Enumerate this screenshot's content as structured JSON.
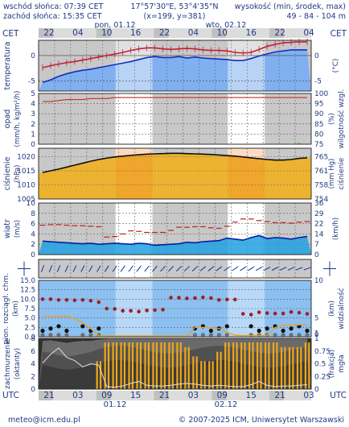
{
  "header": {
    "sunrise": "wschód słońca: 07:39 CET",
    "sunset": "zachód słońca: 15:35 CET",
    "coords": "17°57'30\"E, 53°4'35\"N",
    "grid": "(x=199, y=381)",
    "elevation_title": "wysokość (min, środek, max)",
    "elevation_values": "49 - 84 - 104 m"
  },
  "footer": {
    "email": "meteo@icm.edu.pl",
    "copyright": "© 2007-2025 ICM, Uniwersytet Warszawski"
  },
  "time_axis": {
    "top_zone": "CET",
    "bottom_zone": "UTC",
    "top_hours": [
      "22",
      "04",
      "10",
      "16",
      "22",
      "04",
      "10",
      "16",
      "22",
      "04"
    ],
    "bottom_hours": [
      "21",
      "03",
      "09",
      "15",
      "21",
      "03",
      "09",
      "15",
      "21",
      "03"
    ],
    "days": [
      "pon, 01.12",
      "wto, 02.12"
    ],
    "bottom_days": [
      "01.12",
      "02.12"
    ]
  },
  "colors": {
    "night": "#c8c8c8",
    "day": "#ffffff",
    "label": "#203a80",
    "temp_line": "#c0203a",
    "dew_line": "#1030c0",
    "pressure_fill": "#f0b020",
    "wind_fill": "#20a0e0",
    "cloud_fill": "#404040",
    "fog_bar": "#f0a818"
  },
  "chart_data": [
    {
      "type": "line",
      "title": "",
      "left_label": "temperatura",
      "right_label": "(°C)",
      "ylim": [
        -7,
        3
      ],
      "left_ticks": [
        "0",
        "-5"
      ],
      "right_ticks": [
        "0",
        "-5"
      ],
      "series": [
        {
          "name": "temperatura",
          "color": "#c0203a",
          "values": [
            -2.4,
            -2.0,
            -1.7,
            -1.4,
            -1.2,
            -0.9,
            -0.6,
            -0.3,
            0.0,
            0.3,
            0.6,
            1.0,
            1.3,
            1.5,
            1.5,
            1.3,
            1.2,
            1.3,
            1.4,
            1.3,
            1.1,
            1.0,
            1.0,
            0.9,
            0.6,
            0.5,
            0.6,
            1.2,
            1.8,
            2.2,
            2.5,
            2.6,
            2.7,
            2.7
          ]
        },
        {
          "name": "punkt rosy",
          "color": "#1030c0",
          "values": [
            -5.3,
            -4.8,
            -4.1,
            -3.6,
            -3.2,
            -2.9,
            -2.7,
            -2.4,
            -2.1,
            -1.8,
            -1.5,
            -1.2,
            -0.8,
            -0.4,
            -0.2,
            -0.4,
            -0.4,
            -0.2,
            -0.5,
            -0.3,
            -0.5,
            -0.6,
            -0.7,
            -0.8,
            -1.0,
            -1.0,
            -0.6,
            -0.1,
            0.3,
            0.7,
            0.9,
            1.1,
            1.1,
            1.1
          ]
        }
      ]
    },
    {
      "type": "line",
      "title": "",
      "left_label": "opad",
      "left_unit": "(mm/h, kg/m²/h)",
      "right_label": "wilgotność wzgl.",
      "right_unit": "(%)",
      "ylim": [
        0,
        5
      ],
      "left_ticks": [
        "5",
        "4",
        "3",
        "2",
        "1",
        "0"
      ],
      "right_ticks": [
        "100",
        "95",
        "90",
        "85",
        "80",
        "75"
      ],
      "series": [
        {
          "name": "wilgotność",
          "color": "#c03020",
          "values": [
            96,
            96,
            96.5,
            97,
            97,
            97,
            97.5,
            97.5,
            97.5,
            98,
            98,
            98,
            98,
            98,
            98,
            98,
            98,
            98,
            98,
            98,
            98,
            98,
            98,
            98,
            98,
            98,
            98,
            98,
            98,
            98,
            98,
            98,
            98,
            98
          ]
        }
      ],
      "precip_bars": [
        0,
        0,
        0,
        0.05,
        0,
        0.08,
        0,
        0,
        0,
        0,
        0,
        0,
        0,
        0,
        0,
        0,
        0,
        0,
        0,
        0,
        0,
        0,
        0,
        0,
        0,
        0,
        0,
        0,
        0,
        0,
        0,
        0.05,
        0.1,
        0
      ]
    },
    {
      "type": "area",
      "title": "",
      "left_label": "ciśnienie",
      "left_unit": "(hPa)",
      "right_label": "ciśnienie",
      "right_unit": "(mm Hg)",
      "ylim": [
        1005,
        1023
      ],
      "left_ticks": [
        "1020",
        "1015",
        "1010",
        "1005"
      ],
      "right_ticks": [
        "765",
        "761",
        "758",
        "754"
      ],
      "series": [
        {
          "name": "ciśnienie",
          "color": "#101010",
          "values": [
            1014.4,
            1015.0,
            1015.6,
            1016.3,
            1017.0,
            1017.7,
            1018.4,
            1019.0,
            1019.5,
            1019.9,
            1020.2,
            1020.5,
            1020.7,
            1020.9,
            1021.0,
            1021.1,
            1021.2,
            1021.2,
            1021.1,
            1021.0,
            1020.9,
            1020.8,
            1020.6,
            1020.4,
            1020.2,
            1019.9,
            1019.6,
            1019.3,
            1019.0,
            1018.8,
            1018.8,
            1019.0,
            1019.4,
            1019.6
          ]
        }
      ]
    },
    {
      "type": "area",
      "title": "",
      "left_label": "wiatr",
      "left_unit": "(m/s)",
      "right_label": "(km/h)",
      "ylim": [
        0,
        10
      ],
      "left_ticks": [
        "10",
        "8",
        "6",
        "4",
        "2",
        "0"
      ],
      "right_ticks": [
        "36",
        "29",
        "22",
        "14",
        "7",
        "0"
      ],
      "series": [
        {
          "name": "prędkość",
          "color": "#0020a0",
          "values": [
            2.6,
            2.5,
            2.4,
            2.3,
            2.2,
            2.1,
            2.2,
            2.0,
            2.1,
            2.2,
            2.1,
            2.0,
            2.2,
            2.1,
            1.8,
            1.9,
            2.0,
            2.1,
            2.4,
            2.3,
            2.5,
            2.6,
            2.7,
            3.2,
            3.0,
            2.8,
            3.3,
            3.7,
            3.1,
            3.3,
            3.2,
            3.0,
            3.3,
            3.5
          ]
        },
        {
          "name": "porywy",
          "color": "#c02020",
          "values": [
            5.7,
            5.8,
            5.8,
            5.7,
            5.6,
            5.6,
            5.5,
            5.4,
            3.4,
            3.5,
            4.0,
            4.6,
            4.5,
            4.3,
            4.3,
            4.3,
            4.7,
            5.3,
            5.3,
            5.4,
            5.4,
            5.2,
            5.1,
            5.5,
            6.3,
            6.9,
            6.9,
            6.6,
            6.4,
            6.2,
            6.2,
            6.1,
            6.3,
            6.4
          ]
        }
      ]
    },
    {
      "type": "scatter",
      "title": "",
      "left_label": "pion. rozciągł. chm.",
      "left_unit": "(km)",
      "right_label": "widzialność",
      "right_unit": "(km)",
      "ylim": [
        0,
        15
      ],
      "left_ticks": [
        "15.0",
        "12.5",
        "10.0",
        "7.5",
        "5.0",
        "2.5",
        "0.0"
      ],
      "right_ticks": [
        "10",
        "5",
        "1",
        "0"
      ],
      "series": [
        {
          "name": "podstawa chmur",
          "color": "#a02020",
          "values": [
            10.0,
            10.0,
            9.8,
            9.8,
            9.7,
            9.8,
            9.6,
            9.2,
            7.5,
            7.4,
            6.9,
            6.9,
            6.7,
            7.0,
            7.1,
            7.2,
            10.4,
            10.4,
            10.2,
            10.3,
            10.5,
            10.3,
            9.8,
            9.9,
            9.9,
            6.1,
            5.9,
            6.5,
            6.3,
            6.2,
            6.2,
            6.6,
            6.4,
            6.1
          ]
        },
        {
          "name": "widzialność",
          "color": "#f0a020",
          "values": [
            5.5,
            5.5,
            5.4,
            5.5,
            4.8,
            3.7,
            2.2,
            0.2,
            0.2,
            0.2,
            0.2,
            0.2,
            0.2,
            0.2,
            0.2,
            0.2,
            0.2,
            0.2,
            0.2,
            2.5,
            2.5,
            2.4,
            2.2,
            1.2,
            0.4,
            0.3,
            0.3,
            0.3,
            0.3,
            2.5,
            3.0,
            3.0,
            3.2,
            3.1
          ]
        }
      ]
    },
    {
      "type": "area",
      "title": "",
      "left_label": "zachmurzenie",
      "left_unit": "(oktanty)",
      "right_label": "mgła",
      "right_unit": "(frakcja)",
      "ylim": [
        0,
        8
      ],
      "left_ticks": [
        "8",
        "6",
        "4",
        "2",
        "0"
      ],
      "right_ticks": [
        "1",
        "0.75",
        "0.5",
        "0.25",
        "0"
      ],
      "series": [
        {
          "name": "zachmurzenie",
          "color": "#404040",
          "values": [
            7.6,
            7.7,
            7.5,
            7.3,
            7.5,
            7.6,
            7.6,
            7.8,
            7.9,
            8,
            8,
            8,
            8,
            8,
            8,
            8,
            8,
            8,
            8,
            8,
            8,
            8,
            8,
            8,
            8,
            8,
            8,
            8,
            8,
            8,
            8,
            8,
            8,
            8
          ]
        },
        {
          "name": "mgła",
          "color": "#f0a818",
          "values": [
            0,
            0,
            0,
            0,
            0,
            0,
            0,
            0.6,
            1,
            1,
            1,
            1,
            1,
            1,
            1,
            1,
            1,
            1,
            0.9,
            0.7,
            0.6,
            0.6,
            0.8,
            1,
            1,
            1,
            1,
            1,
            1,
            1,
            0.9,
            0.9,
            0.9,
            1
          ]
        }
      ]
    }
  ]
}
